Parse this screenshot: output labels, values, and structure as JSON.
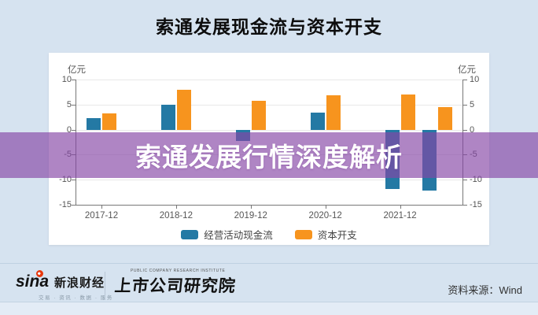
{
  "title": "索通发展现金流与资本开支",
  "overlay": {
    "text": "索通发展行情深度解析"
  },
  "footer": {
    "sina_logo_text": "sina",
    "sina_brand": "新浪财经",
    "sina_tagline": "交易 · 资讯 · 数据 · 服务",
    "institute_en": "PUBLIC COMPANY RESEARCH INSTITUTE",
    "institute": "上市公司研究院",
    "source": "资料来源：Wind"
  },
  "chart_data": {
    "type": "bar",
    "title": "索通发展现金流与资本开支",
    "unit_label_left": "亿元",
    "unit_label_right": "亿元",
    "x_tick_labels": [
      "2017-12",
      "2018-12",
      "2019-12",
      "2020-12",
      "2021-12"
    ],
    "x_tick_indices": [
      0,
      2,
      4,
      6,
      8
    ],
    "x_slots": 10,
    "bar_slot_indices": [
      0,
      2,
      4,
      6,
      8,
      9
    ],
    "series": [
      {
        "name": "经营活动现金流",
        "color": "#2479A4",
        "values": [
          2.3,
          5.0,
          -2.2,
          3.4,
          -11.9,
          -12.2
        ]
      },
      {
        "name": "资本开支",
        "color": "#F7941E",
        "values": [
          3.3,
          8.0,
          5.8,
          6.8,
          7.0,
          4.5
        ]
      }
    ],
    "ylim": [
      -15,
      10
    ],
    "yticks": [
      10,
      5,
      0,
      -5,
      -10,
      -15
    ],
    "grid": true,
    "legend_position": "bottom",
    "watermark_color": "#8946A5"
  }
}
